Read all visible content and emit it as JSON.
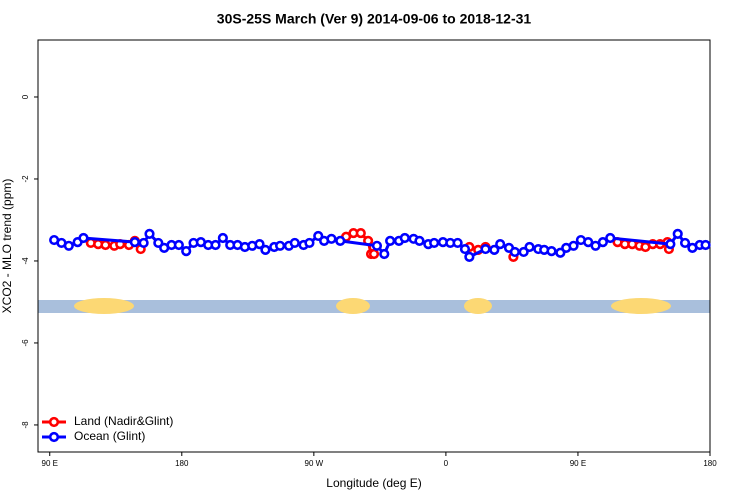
{
  "chart_data": {
    "type": "line",
    "title": "30S-25S March (Ver 9)   2014-09-06 to 2018-12-31",
    "xlabel": "Longitude (deg E)",
    "ylabel": "XCO2 - MLO trend (ppm)",
    "xlim": [
      82,
      540
    ],
    "ylim": [
      -8.66,
      1.39
    ],
    "xticks": [
      {
        "value": 90,
        "label": "90 E"
      },
      180,
      {
        "value": 270,
        "label": "90 W"
      },
      {
        "value": 360,
        "label": "0"
      },
      {
        "value": 450,
        "label": "90 E"
      },
      {
        "value": 540,
        "label": "180"
      }
    ],
    "yticks": [
      0,
      -2,
      -4,
      -6,
      -8
    ],
    "legend": "bottom-left",
    "series": [
      {
        "name": "Land (Nadir&Glint)",
        "color": "#ff0000",
        "x": [
          118,
          123,
          128,
          134,
          138,
          144,
          148,
          152,
          200,
          292,
          297,
          302,
          307,
          309,
          311,
          350,
          376,
          382,
          387,
          400,
          406,
          450,
          477,
          482,
          487,
          492,
          496,
          501,
          506,
          511,
          512
        ],
        "values": [
          -3.56,
          -3.59,
          -3.61,
          -3.63,
          -3.59,
          -3.61,
          -3.51,
          -3.71,
          null,
          -3.41,
          -3.32,
          -3.32,
          -3.51,
          -3.83,
          -3.83,
          null,
          -3.66,
          -3.73,
          -3.66,
          null,
          -3.9,
          null,
          -3.54,
          -3.59,
          -3.59,
          -3.63,
          -3.66,
          -3.59,
          -3.59,
          -3.54,
          -3.71
        ]
      },
      {
        "name": "Ocean (Glint)",
        "color": "#0000ff",
        "x": [
          93,
          98,
          103,
          109,
          113,
          148,
          154,
          158,
          164,
          168,
          173,
          178,
          183,
          188,
          193,
          198,
          203,
          208,
          213,
          218,
          223,
          228,
          233,
          237,
          243,
          247,
          253,
          257,
          263,
          267,
          273,
          277,
          282,
          288,
          313,
          318,
          322,
          328,
          332,
          338,
          342,
          348,
          352,
          358,
          363,
          368,
          373,
          376,
          387,
          393,
          397,
          403,
          407,
          413,
          417,
          423,
          427,
          432,
          438,
          442,
          447,
          452,
          457,
          462,
          467,
          472,
          513,
          518,
          523,
          528,
          533,
          537
        ],
        "values": [
          -3.49,
          -3.56,
          -3.63,
          -3.54,
          -3.44,
          -3.54,
          -3.56,
          -3.34,
          -3.56,
          -3.68,
          -3.61,
          -3.61,
          -3.76,
          -3.56,
          -3.54,
          -3.61,
          -3.61,
          -3.44,
          -3.61,
          -3.61,
          -3.66,
          -3.63,
          -3.59,
          -3.73,
          -3.66,
          -3.63,
          -3.63,
          -3.56,
          -3.61,
          -3.56,
          -3.39,
          -3.51,
          -3.46,
          -3.51,
          -3.63,
          -3.83,
          -3.51,
          -3.51,
          -3.44,
          -3.46,
          -3.51,
          -3.59,
          -3.56,
          -3.54,
          -3.56,
          -3.56,
          -3.71,
          -3.9,
          -3.71,
          -3.73,
          -3.59,
          -3.68,
          -3.78,
          -3.78,
          -3.66,
          -3.71,
          -3.73,
          -3.76,
          -3.8,
          -3.68,
          -3.63,
          -3.49,
          -3.54,
          -3.63,
          -3.54,
          -3.44,
          -3.59,
          -3.34,
          -3.56,
          -3.68,
          -3.61,
          -3.61
        ]
      }
    ]
  }
}
